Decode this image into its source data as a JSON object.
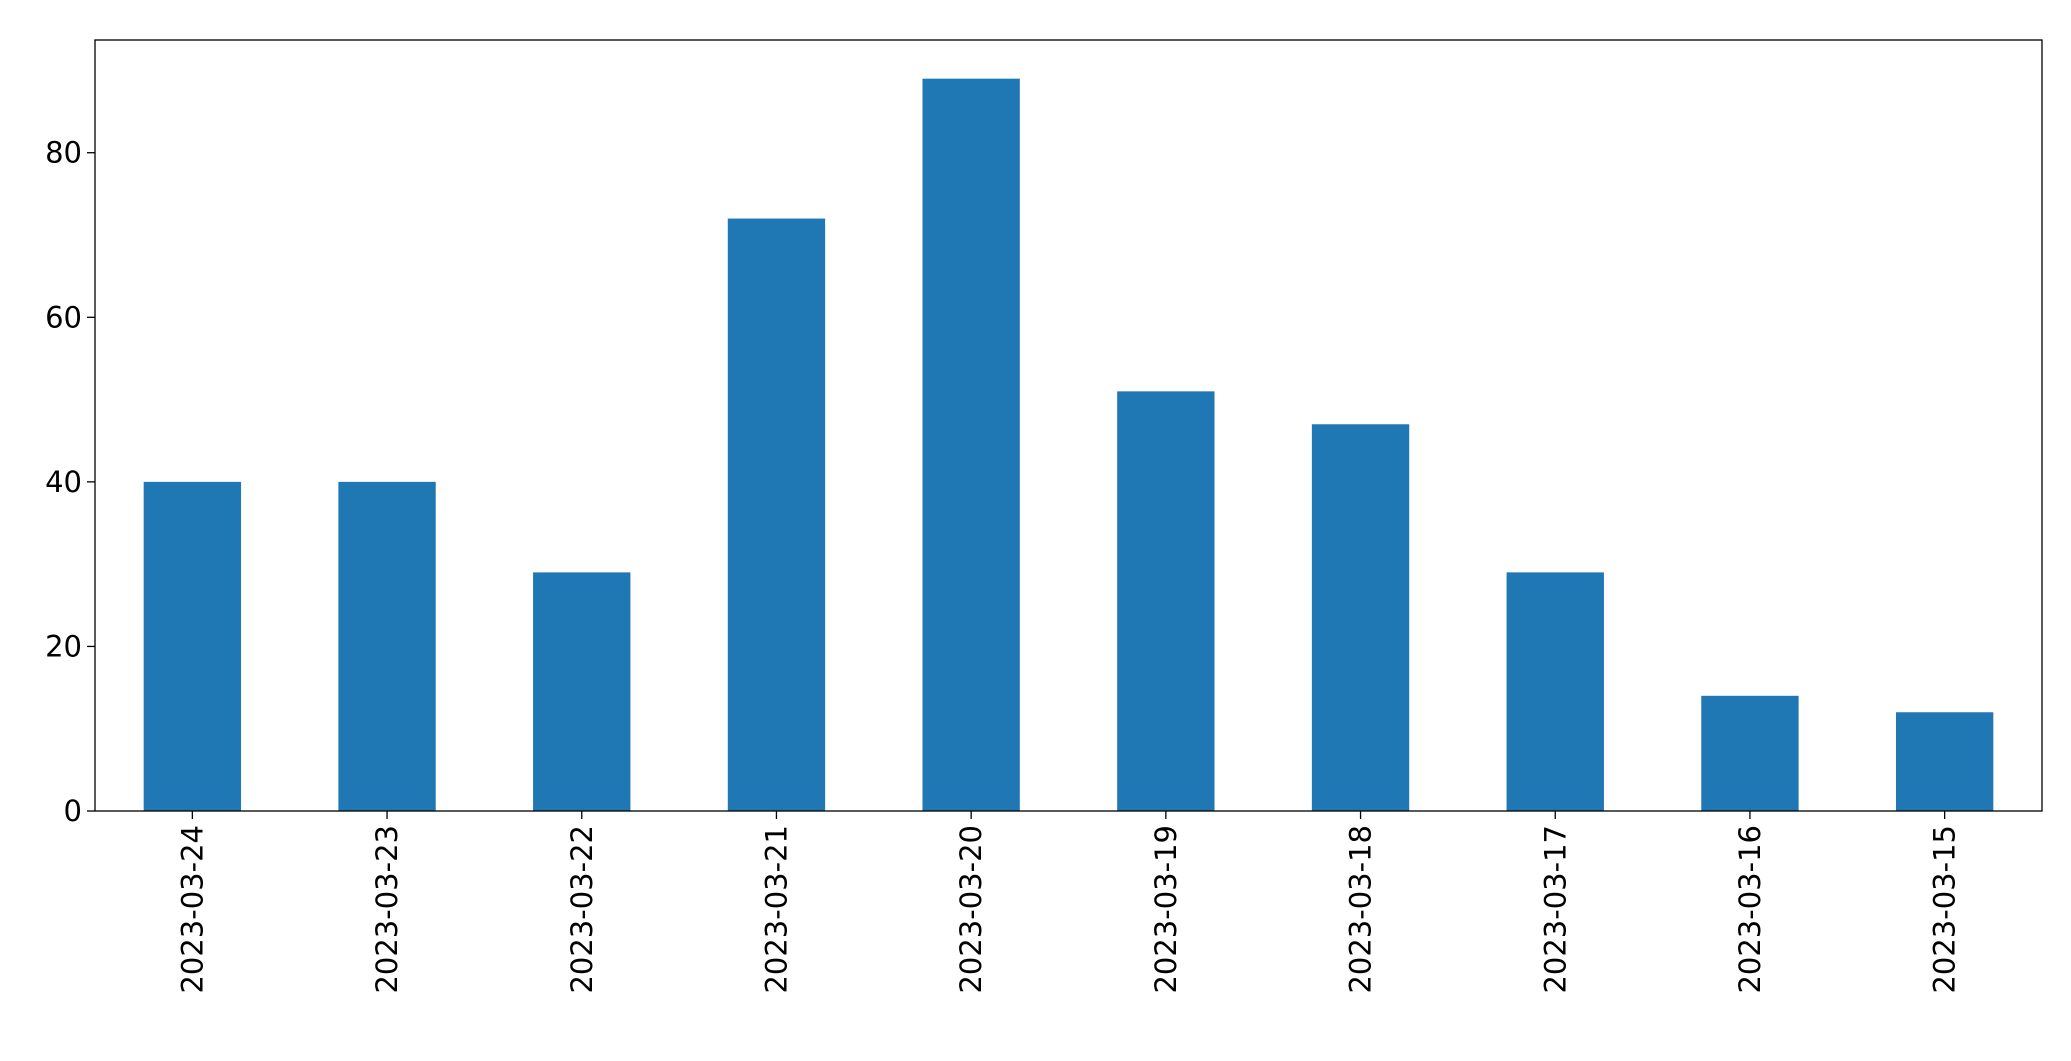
{
  "chart_data": {
    "type": "bar",
    "categories": [
      "2023-03-24",
      "2023-03-23",
      "2023-03-22",
      "2023-03-21",
      "2023-03-20",
      "2023-03-19",
      "2023-03-18",
      "2023-03-17",
      "2023-03-16",
      "2023-03-15"
    ],
    "values": [
      40,
      40,
      29,
      72,
      89,
      51,
      47,
      29,
      14,
      12
    ],
    "title": "",
    "xlabel": "",
    "ylabel": "",
    "ylim": [
      0,
      93.7
    ],
    "yticks": [
      0,
      20,
      40,
      60,
      80
    ],
    "xtick_rotation": 90,
    "grid": false,
    "legend": "none",
    "bar_color": "#1f77b4"
  }
}
